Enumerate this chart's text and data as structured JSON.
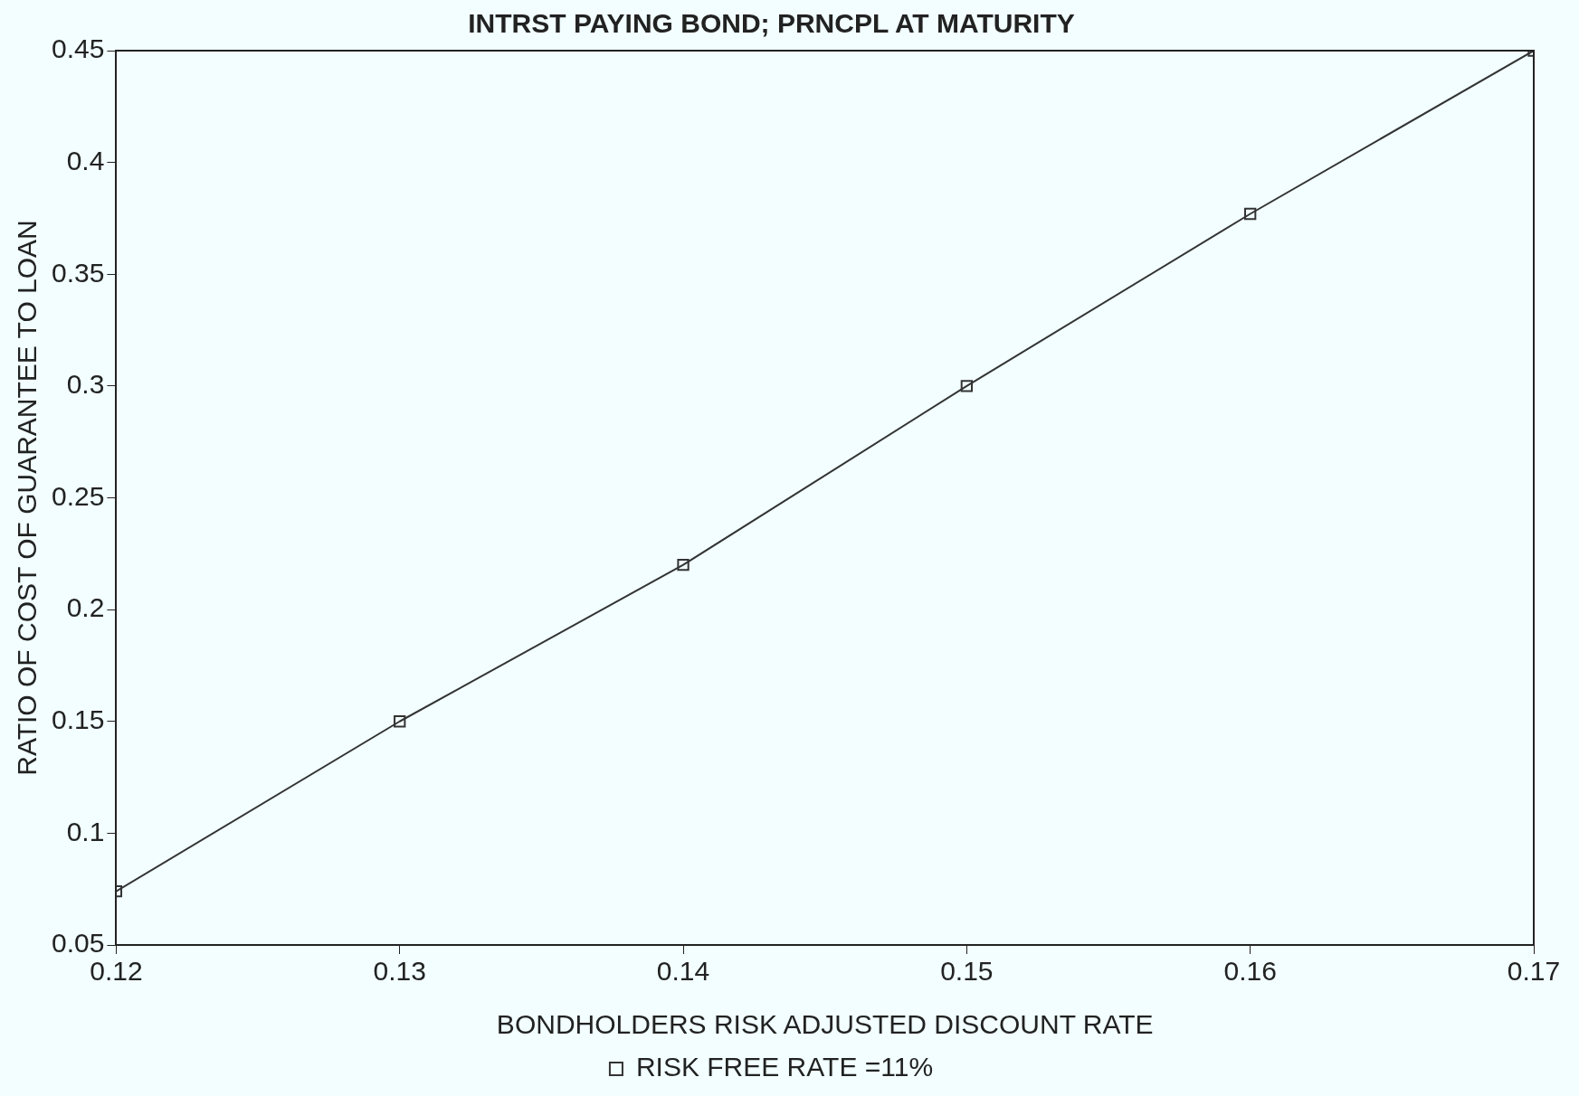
{
  "chart_data": {
    "type": "line",
    "title": "INTRST PAYING BOND; PRNCPL AT MATURITY",
    "xlabel": "BONDHOLDERS RISK ADJUSTED DISCOUNT RATE",
    "ylabel": "RATIO OF COST OF GUARANTEE TO LOAN",
    "x": [
      0.12,
      0.13,
      0.14,
      0.15,
      0.16,
      0.17
    ],
    "series": [
      {
        "name": "RISK FREE RATE =11%",
        "color": "#333333",
        "values": [
          0.074,
          0.15,
          0.22,
          0.3,
          0.377,
          0.45
        ]
      }
    ],
    "xlim": [
      0.12,
      0.17
    ],
    "xticks": [
      0.12,
      0.13,
      0.14,
      0.15,
      0.16,
      0.17
    ],
    "ylim": [
      0.05,
      0.45
    ],
    "yticks": [
      0.05,
      0.1,
      0.15,
      0.2,
      0.25,
      0.3,
      0.35,
      0.4,
      0.45
    ],
    "grid": false,
    "legend": "bottom",
    "marker": "square",
    "line_style": "solid"
  }
}
